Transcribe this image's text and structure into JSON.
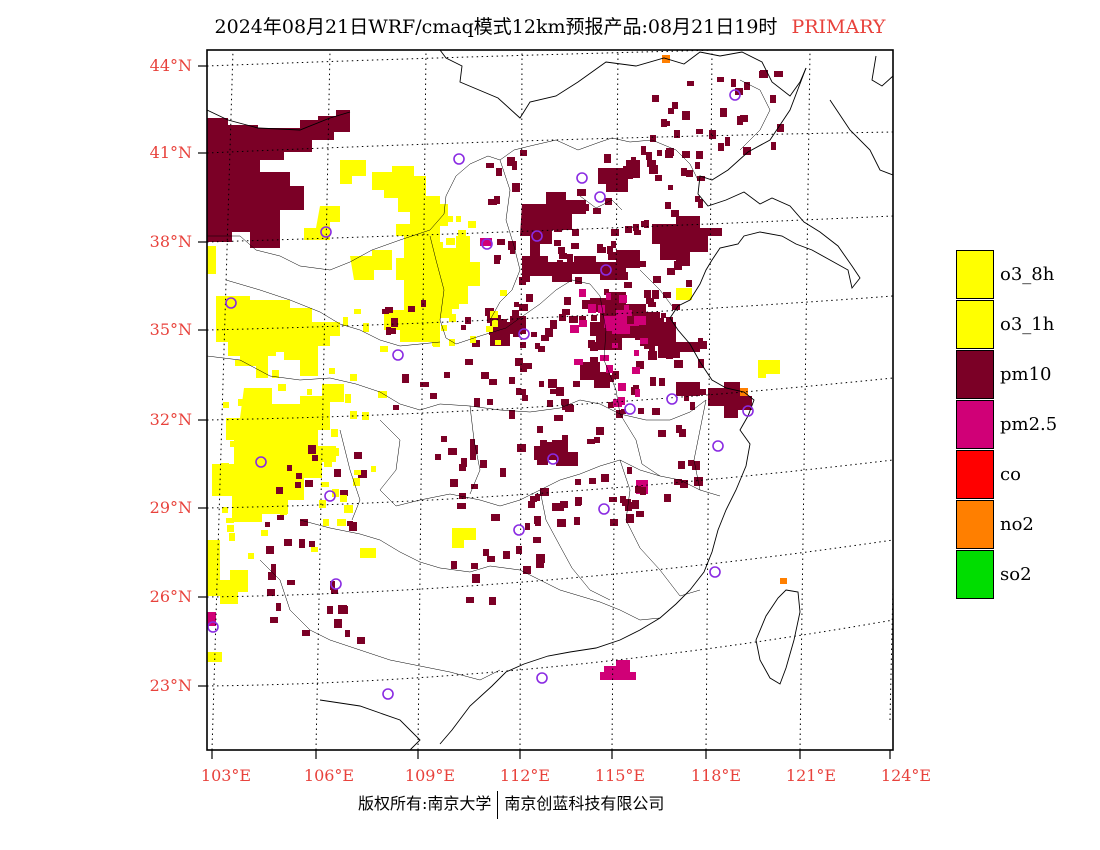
{
  "title": {
    "text": "2024年08月21日WRF/cmaq模式12km预报产品:08月21日19时",
    "tag": "PRIMARY"
  },
  "lat_labels": [
    "44°N",
    "41°N",
    "38°N",
    "35°N",
    "32°N",
    "29°N",
    "26°N",
    "23°N"
  ],
  "lon_labels": [
    "103°E",
    "106°E",
    "109°E",
    "112°E",
    "115°E",
    "118°E",
    "121°E",
    "124°E"
  ],
  "legend": {
    "items": [
      {
        "label": "o3_8h",
        "color": "#ffff00"
      },
      {
        "label": "o3_1h",
        "color": "#ffff00"
      },
      {
        "label": "pm10",
        "color": "#7b0026"
      },
      {
        "label": "pm2.5",
        "color": "#d00077"
      },
      {
        "label": "co",
        "color": "#ff0000"
      },
      {
        "label": "no2",
        "color": "#ff7f00"
      },
      {
        "label": "so2",
        "color": "#00dd00"
      }
    ]
  },
  "footer": {
    "left": "版权所有:南京大学",
    "right": "南京创蓝科技有限公司"
  },
  "map_colors": {
    "o3": "#ffff00",
    "pm10": "#7b0026",
    "pm25": "#d00077",
    "no2": "#ff7f00",
    "station": "#8a2be2",
    "grid": "#000000"
  }
}
